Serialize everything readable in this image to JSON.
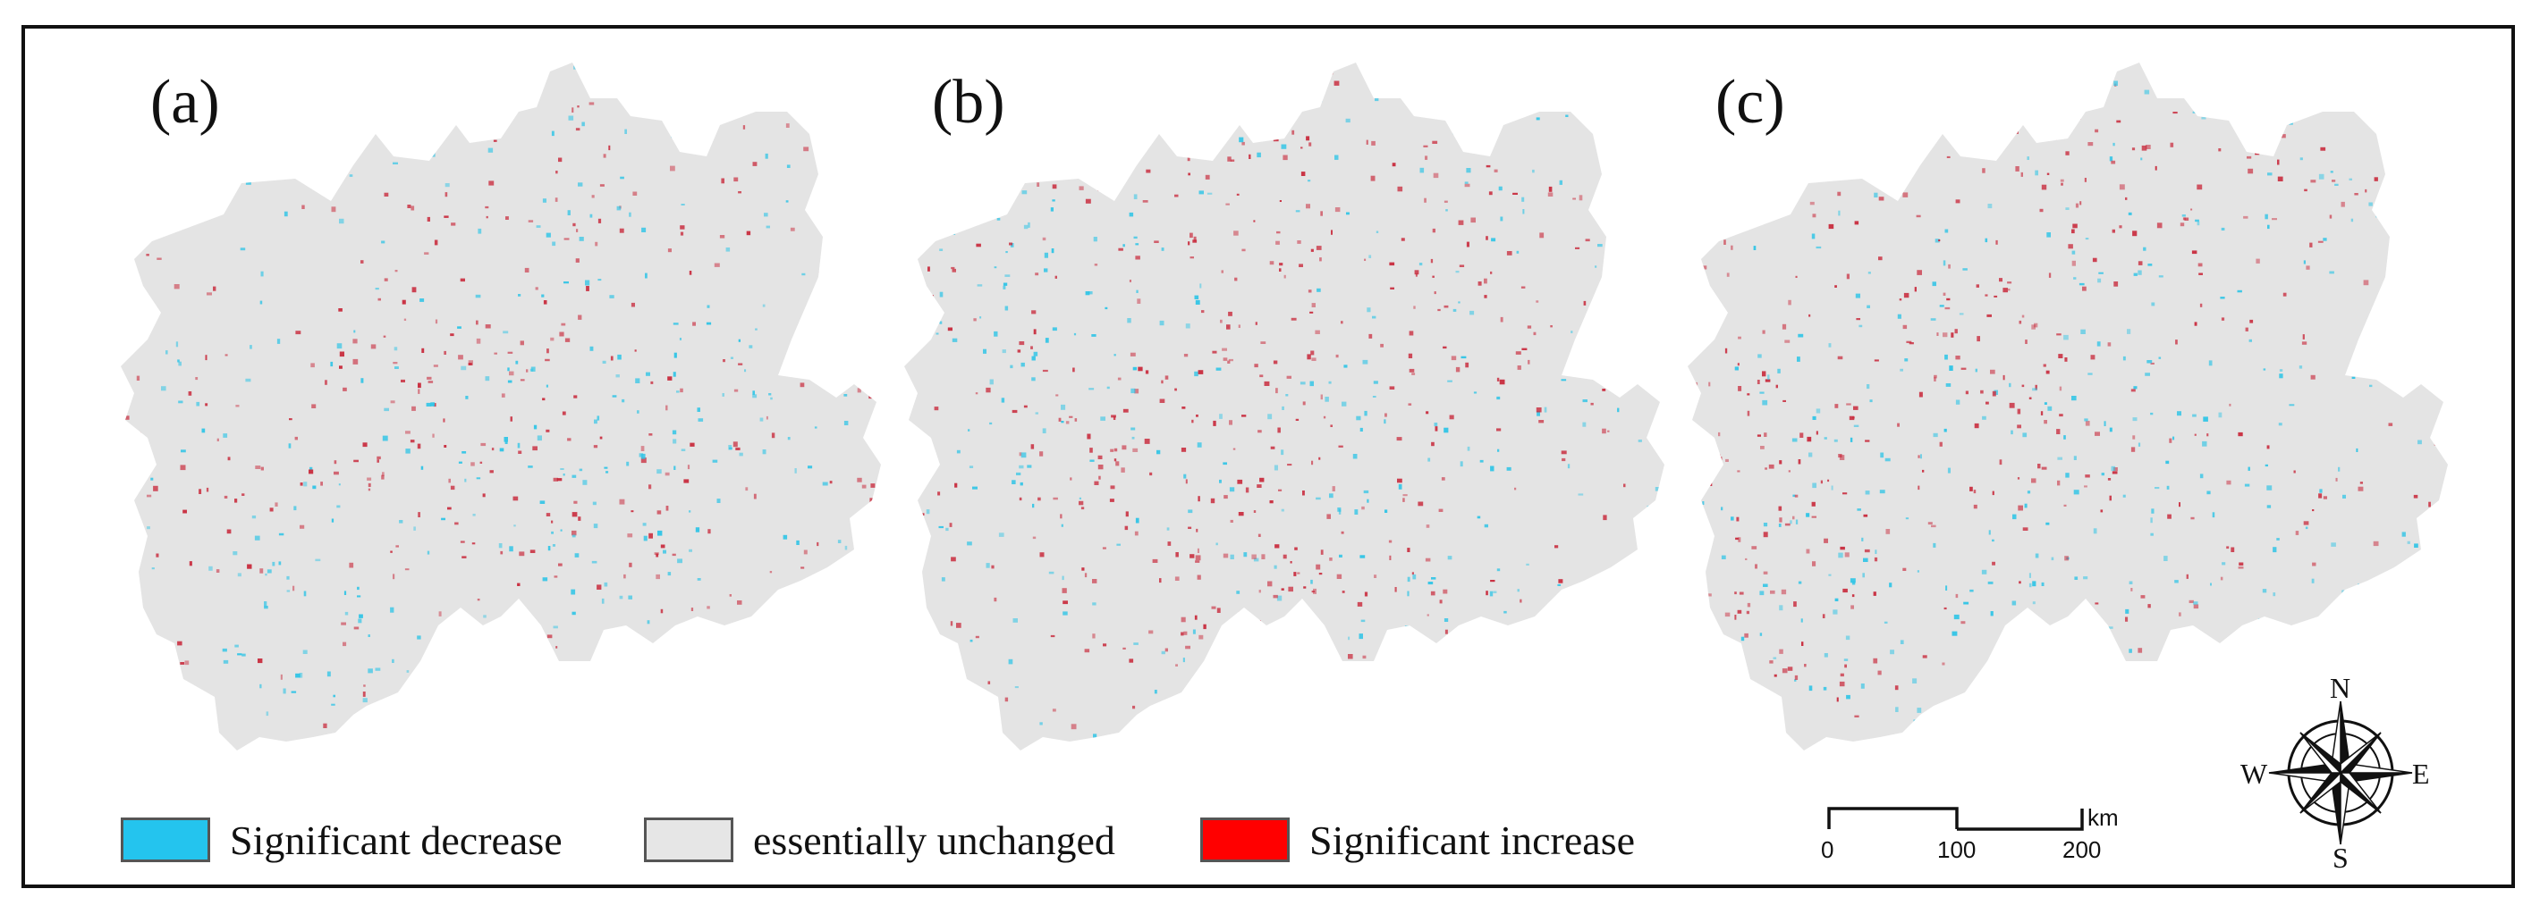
{
  "panels": [
    {
      "label": "(a)",
      "red_density": 0.55,
      "blue_density": 0.45,
      "red_hotspots": [
        [
          0.18,
          0.62
        ],
        [
          0.55,
          0.3
        ],
        [
          0.4,
          0.55
        ]
      ],
      "blue_hotspots": [
        [
          0.35,
          0.85
        ],
        [
          0.7,
          0.52
        ],
        [
          0.55,
          0.62
        ]
      ]
    },
    {
      "label": "(b)",
      "red_density": 0.7,
      "blue_density": 0.4,
      "red_hotspots": [
        [
          0.55,
          0.22
        ],
        [
          0.4,
          0.55
        ],
        [
          0.45,
          0.75
        ],
        [
          0.75,
          0.35
        ]
      ],
      "blue_hotspots": [
        [
          0.62,
          0.65
        ],
        [
          0.2,
          0.45
        ]
      ]
    },
    {
      "label": "(c)",
      "red_density": 0.65,
      "blue_density": 0.5,
      "red_hotspots": [
        [
          0.12,
          0.65
        ],
        [
          0.6,
          0.2
        ],
        [
          0.4,
          0.45
        ]
      ],
      "blue_hotspots": [
        [
          0.25,
          0.75
        ],
        [
          0.55,
          0.48
        ],
        [
          0.38,
          0.85
        ]
      ]
    }
  ],
  "legend": [
    {
      "label": "Significant decrease",
      "color": "#24c4ee"
    },
    {
      "label": "essentially unchanged",
      "color": "#e6e6e6"
    },
    {
      "label": "Significant increase",
      "color": "#ff0000"
    }
  ],
  "scale_bar": {
    "ticks": [
      "0",
      "100",
      "200"
    ],
    "unit": "km"
  },
  "compass": {
    "N": "N",
    "S": "S",
    "E": "E",
    "W": "W"
  },
  "colors": {
    "base_gray": "#e4e4e4",
    "increase_red": "#c8283a",
    "decrease_cyan": "#2ec4e6"
  }
}
